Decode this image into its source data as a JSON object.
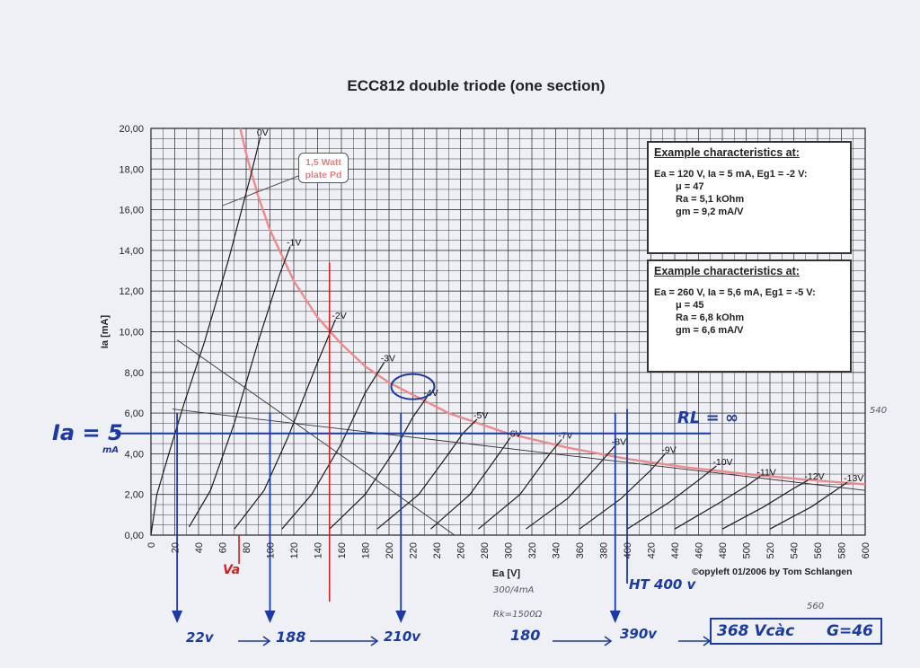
{
  "title": "ECC812 double triode (one section)",
  "copyright": "©opyleft 01/2006 by Tom Schlangen",
  "example_boxes": [
    {
      "heading": "Example characteristics at:",
      "condition": "Ea = 120 V, Ia = 5 mA, Eg1 = -2 V:",
      "lines": [
        "μ    = 47",
        "Ra   = 5,1 kOhm",
        "gm = 9,2 mA/V"
      ]
    },
    {
      "heading": "Example characteristics at:",
      "condition": "Ea = 260 V, Ia = 5,6 mA, Eg1 = -5 V:",
      "lines": [
        "μ    = 45",
        "Ra   = 6,8 kOhm",
        "gm = 6,6 mA/V"
      ]
    }
  ],
  "callout": {
    "line1": "1,5 Watt",
    "line2": "plate Pd"
  },
  "handwriting": {
    "ia_label": "Ia = 5",
    "ia_unit": "mA",
    "rl_label": "RL = ∞",
    "va_label": "Va",
    "ht_label": "HT 400 v",
    "bottom_22": "22v",
    "bottom_188": "188",
    "bottom_210": "210v",
    "bottom_180": "180",
    "bottom_390": "390v",
    "result_a": "368 Vcàc",
    "result_b": "G=46",
    "note_a": "300/4mA",
    "note_b": "Rk=1500Ω",
    "note_540": "540",
    "note_560": "560"
  },
  "colors": {
    "grid": "#3a3a3a",
    "curve": "#1c1c1c",
    "pd_curve": "#ef8a8a",
    "ink_blue": "#1a3aa8",
    "ink_red": "#d42020",
    "background": "#eef0f6"
  },
  "chart_data": {
    "type": "line",
    "title": "ECC812 double triode (one section)",
    "xlabel": "Ea [V]",
    "ylabel": "Ia [mA]",
    "xlim": [
      0,
      600
    ],
    "ylim": [
      0,
      20
    ],
    "xticks": [
      0,
      20,
      40,
      60,
      80,
      100,
      120,
      140,
      160,
      180,
      200,
      220,
      240,
      260,
      280,
      300,
      320,
      340,
      360,
      380,
      400,
      420,
      440,
      460,
      480,
      500,
      520,
      540,
      560,
      580,
      600
    ],
    "yticks": [
      "0,00",
      "2,00",
      "4,00",
      "6,00",
      "8,00",
      "10,00",
      "12,00",
      "14,00",
      "16,00",
      "18,00",
      "20,00"
    ],
    "grid": true,
    "series": [
      {
        "name": "0V",
        "points": [
          [
            0,
            0
          ],
          [
            5,
            2
          ],
          [
            15,
            4
          ],
          [
            28,
            6.5
          ],
          [
            45,
            9.5
          ],
          [
            65,
            13.5
          ],
          [
            83,
            17.5
          ],
          [
            92,
            19.6
          ]
        ]
      },
      {
        "name": "-1V",
        "points": [
          [
            32,
            0.4
          ],
          [
            50,
            2.2
          ],
          [
            70,
            5.5
          ],
          [
            90,
            9.5
          ],
          [
            108,
            12.8
          ],
          [
            117,
            14.2
          ]
        ]
      },
      {
        "name": "-2V",
        "points": [
          [
            70,
            0.3
          ],
          [
            95,
            2.2
          ],
          [
            115,
            4.8
          ],
          [
            140,
            8.5
          ],
          [
            155,
            10.6
          ]
        ]
      },
      {
        "name": "-3V",
        "points": [
          [
            110,
            0.3
          ],
          [
            135,
            2.0
          ],
          [
            160,
            4.5
          ],
          [
            180,
            7.0
          ],
          [
            196,
            8.5
          ]
        ]
      },
      {
        "name": "-4V",
        "points": [
          [
            150,
            0.3
          ],
          [
            180,
            2.0
          ],
          [
            205,
            4.2
          ],
          [
            220,
            5.8
          ],
          [
            232,
            6.8
          ]
        ]
      },
      {
        "name": "-5V",
        "points": [
          [
            190,
            0.3
          ],
          [
            225,
            2.0
          ],
          [
            250,
            4.0
          ],
          [
            262,
            5.0
          ],
          [
            274,
            5.7
          ]
        ]
      },
      {
        "name": "-6V",
        "points": [
          [
            235,
            0.3
          ],
          [
            268,
            2.0
          ],
          [
            290,
            3.8
          ],
          [
            302,
            4.8
          ]
        ]
      },
      {
        "name": "-7V",
        "points": [
          [
            275,
            0.3
          ],
          [
            310,
            2.0
          ],
          [
            335,
            4.0
          ],
          [
            345,
            4.7
          ]
        ]
      },
      {
        "name": "-8V",
        "points": [
          [
            315,
            0.3
          ],
          [
            350,
            1.8
          ],
          [
            375,
            3.4
          ],
          [
            390,
            4.4
          ]
        ]
      },
      {
        "name": "-9V",
        "points": [
          [
            360,
            0.3
          ],
          [
            395,
            1.8
          ],
          [
            420,
            3.2
          ],
          [
            432,
            4.0
          ]
        ]
      },
      {
        "name": "-10V",
        "points": [
          [
            400,
            0.3
          ],
          [
            435,
            1.6
          ],
          [
            460,
            2.7
          ],
          [
            475,
            3.4
          ]
        ]
      },
      {
        "name": "-11V",
        "points": [
          [
            440,
            0.3
          ],
          [
            475,
            1.5
          ],
          [
            500,
            2.4
          ],
          [
            512,
            2.9
          ]
        ]
      },
      {
        "name": "-12V",
        "points": [
          [
            480,
            0.3
          ],
          [
            515,
            1.4
          ],
          [
            540,
            2.3
          ],
          [
            552,
            2.7
          ]
        ]
      },
      {
        "name": "-13V",
        "points": [
          [
            520,
            0.3
          ],
          [
            555,
            1.4
          ],
          [
            575,
            2.2
          ],
          [
            585,
            2.6
          ]
        ]
      }
    ],
    "pd_curve": {
      "name": "1,5 Watt plate Pd",
      "points": [
        [
          75,
          20
        ],
        [
          80,
          18.75
        ],
        [
          90,
          16.67
        ],
        [
          100,
          15
        ],
        [
          120,
          12.5
        ],
        [
          140,
          10.7
        ],
        [
          160,
          9.4
        ],
        [
          180,
          8.3
        ],
        [
          200,
          7.5
        ],
        [
          250,
          6.0
        ],
        [
          300,
          5.0
        ],
        [
          350,
          4.3
        ],
        [
          400,
          3.75
        ],
        [
          450,
          3.33
        ],
        [
          500,
          3.0
        ],
        [
          550,
          2.73
        ],
        [
          600,
          2.5
        ]
      ]
    },
    "load_lines": [
      {
        "name": "load-line-a",
        "points": [
          [
            22,
            9.6
          ],
          [
            255,
            0
          ]
        ]
      },
      {
        "name": "load-line-b",
        "points": [
          [
            18,
            6.2
          ],
          [
            600,
            2.2
          ]
        ]
      }
    ],
    "annotations": {
      "operating_current_ma": 5,
      "bias_marker_ea": 150,
      "ht_marker_ea": 390,
      "marker_ea": [
        22,
        100,
        210,
        390
      ]
    }
  }
}
